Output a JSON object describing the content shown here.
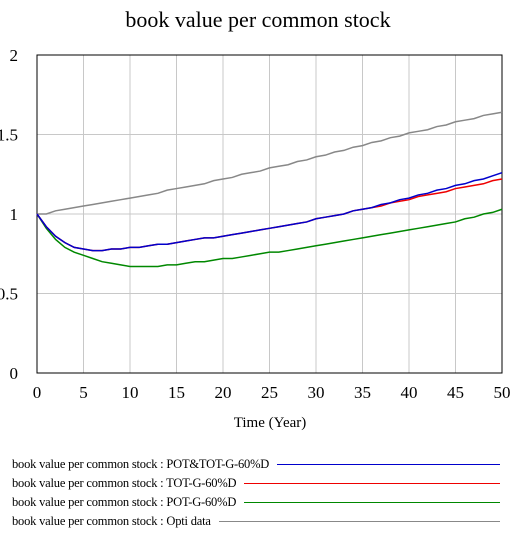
{
  "chart_data": {
    "type": "line",
    "title": "book value per common stock",
    "xlabel": "Time (Year)",
    "ylabel": "",
    "xlim": [
      0,
      50
    ],
    "ylim": [
      0,
      2
    ],
    "xticks": [
      "0",
      "5",
      "10",
      "15",
      "20",
      "25",
      "30",
      "35",
      "40",
      "45",
      "50"
    ],
    "yticks": [
      "0",
      "0.5",
      "1",
      "1.5",
      "2"
    ],
    "grid": true,
    "legend_position": "bottom",
    "series": [
      {
        "name": "book value per common stock : POT&TOT-G-60%D",
        "color": "#0000cc",
        "x": [
          0,
          1,
          2,
          3,
          4,
          5,
          6,
          7,
          8,
          9,
          10,
          11,
          12,
          13,
          14,
          15,
          16,
          17,
          18,
          19,
          20,
          21,
          22,
          23,
          24,
          25,
          26,
          27,
          28,
          29,
          30,
          31,
          32,
          33,
          34,
          35,
          36,
          37,
          38,
          39,
          40,
          41,
          42,
          43,
          44,
          45,
          46,
          47,
          48,
          49,
          50
        ],
        "y": [
          1.0,
          0.92,
          0.86,
          0.82,
          0.79,
          0.78,
          0.77,
          0.77,
          0.78,
          0.78,
          0.79,
          0.79,
          0.8,
          0.81,
          0.81,
          0.82,
          0.83,
          0.84,
          0.85,
          0.85,
          0.86,
          0.87,
          0.88,
          0.89,
          0.9,
          0.91,
          0.92,
          0.93,
          0.94,
          0.95,
          0.97,
          0.98,
          0.99,
          1.0,
          1.02,
          1.03,
          1.04,
          1.06,
          1.07,
          1.09,
          1.1,
          1.12,
          1.13,
          1.15,
          1.16,
          1.18,
          1.19,
          1.21,
          1.22,
          1.24,
          1.26
        ]
      },
      {
        "name": "book value per common stock : TOT-G-60%D",
        "color": "#ee0000",
        "x": [
          0,
          1,
          2,
          3,
          4,
          5,
          6,
          7,
          8,
          9,
          10,
          11,
          12,
          13,
          14,
          15,
          16,
          17,
          18,
          19,
          20,
          21,
          22,
          23,
          24,
          25,
          26,
          27,
          28,
          29,
          30,
          31,
          32,
          33,
          34,
          35,
          36,
          37,
          38,
          39,
          40,
          41,
          42,
          43,
          44,
          45,
          46,
          47,
          48,
          49,
          50
        ],
        "y": [
          1.0,
          0.92,
          0.86,
          0.82,
          0.79,
          0.78,
          0.77,
          0.77,
          0.78,
          0.78,
          0.79,
          0.79,
          0.8,
          0.81,
          0.81,
          0.82,
          0.83,
          0.84,
          0.85,
          0.85,
          0.86,
          0.87,
          0.88,
          0.89,
          0.9,
          0.91,
          0.92,
          0.93,
          0.94,
          0.95,
          0.97,
          0.98,
          0.99,
          1.0,
          1.02,
          1.03,
          1.04,
          1.05,
          1.07,
          1.08,
          1.09,
          1.11,
          1.12,
          1.13,
          1.14,
          1.16,
          1.17,
          1.18,
          1.19,
          1.21,
          1.22
        ]
      },
      {
        "name": "book value per common stock : POT-G-60%D",
        "color": "#008800",
        "x": [
          0,
          1,
          2,
          3,
          4,
          5,
          6,
          7,
          8,
          9,
          10,
          11,
          12,
          13,
          14,
          15,
          16,
          17,
          18,
          19,
          20,
          21,
          22,
          23,
          24,
          25,
          26,
          27,
          28,
          29,
          30,
          31,
          32,
          33,
          34,
          35,
          36,
          37,
          38,
          39,
          40,
          41,
          42,
          43,
          44,
          45,
          46,
          47,
          48,
          49,
          50
        ],
        "y": [
          1.0,
          0.91,
          0.84,
          0.79,
          0.76,
          0.74,
          0.72,
          0.7,
          0.69,
          0.68,
          0.67,
          0.67,
          0.67,
          0.67,
          0.68,
          0.68,
          0.69,
          0.7,
          0.7,
          0.71,
          0.72,
          0.72,
          0.73,
          0.74,
          0.75,
          0.76,
          0.76,
          0.77,
          0.78,
          0.79,
          0.8,
          0.81,
          0.82,
          0.83,
          0.84,
          0.85,
          0.86,
          0.87,
          0.88,
          0.89,
          0.9,
          0.91,
          0.92,
          0.93,
          0.94,
          0.95,
          0.97,
          0.98,
          1.0,
          1.01,
          1.03
        ]
      },
      {
        "name": "book value per common stock : Opti data",
        "color": "#888888",
        "x": [
          0,
          1,
          2,
          3,
          4,
          5,
          6,
          7,
          8,
          9,
          10,
          11,
          12,
          13,
          14,
          15,
          16,
          17,
          18,
          19,
          20,
          21,
          22,
          23,
          24,
          25,
          26,
          27,
          28,
          29,
          30,
          31,
          32,
          33,
          34,
          35,
          36,
          37,
          38,
          39,
          40,
          41,
          42,
          43,
          44,
          45,
          46,
          47,
          48,
          49,
          50
        ],
        "y": [
          1.0,
          1.0,
          1.02,
          1.03,
          1.04,
          1.05,
          1.06,
          1.07,
          1.08,
          1.09,
          1.1,
          1.11,
          1.12,
          1.13,
          1.15,
          1.16,
          1.17,
          1.18,
          1.19,
          1.21,
          1.22,
          1.23,
          1.25,
          1.26,
          1.27,
          1.29,
          1.3,
          1.31,
          1.33,
          1.34,
          1.36,
          1.37,
          1.39,
          1.4,
          1.42,
          1.43,
          1.45,
          1.46,
          1.48,
          1.49,
          1.51,
          1.52,
          1.53,
          1.55,
          1.56,
          1.58,
          1.59,
          1.6,
          1.62,
          1.63,
          1.64
        ]
      }
    ]
  }
}
